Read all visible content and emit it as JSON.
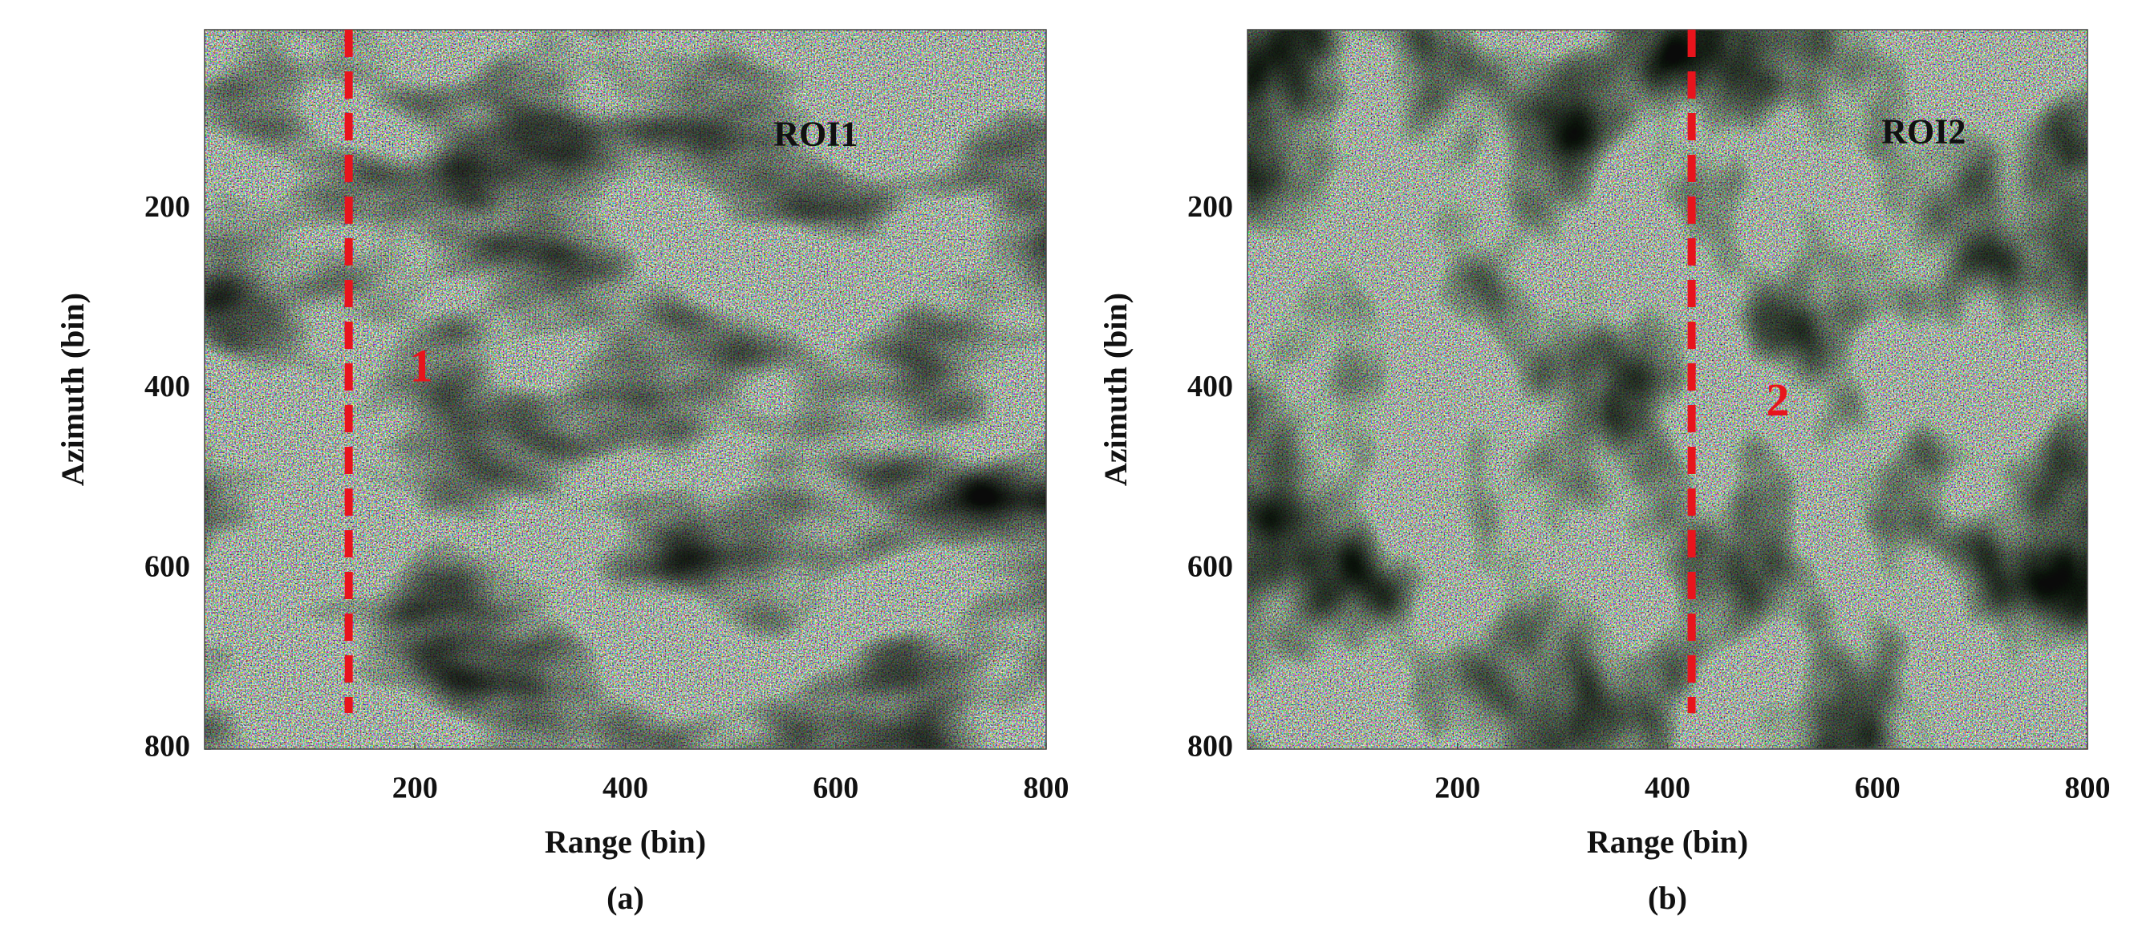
{
  "chart_data": [
    {
      "type": "image",
      "subtitle": "(a)",
      "xlabel": "Range (bin)",
      "ylabel": "Azimuth (bin)",
      "xlim": [
        0,
        800
      ],
      "ylim": [
        800,
        0
      ],
      "xticks": [
        200,
        400,
        600,
        800
      ],
      "yticks": [
        200,
        400,
        600,
        800
      ],
      "cut_line": {
        "x": 137,
        "y": [
          0,
          760
        ],
        "color": "#e8141c"
      },
      "annotations": [
        {
          "text": "ROI1",
          "x": 581,
          "y": 120,
          "color": "#111111"
        },
        {
          "text": "1",
          "x": 206,
          "y": 379,
          "color": "#e8141c"
        }
      ]
    },
    {
      "type": "image",
      "subtitle": "(b)",
      "xlabel": "Range (bin)",
      "ylabel": "Azimuth (bin)",
      "xlim": [
        0,
        800
      ],
      "ylim": [
        800,
        0
      ],
      "xticks": [
        200,
        400,
        600,
        800
      ],
      "yticks": [
        200,
        400,
        600,
        800
      ],
      "cut_line": {
        "x": 423,
        "y": [
          0,
          760
        ],
        "color": "#e8141c"
      },
      "annotations": [
        {
          "text": "ROI2",
          "x": 644,
          "y": 117,
          "color": "#111111"
        },
        {
          "text": "2",
          "x": 505,
          "y": 417,
          "color": "#e8141c"
        }
      ]
    }
  ]
}
